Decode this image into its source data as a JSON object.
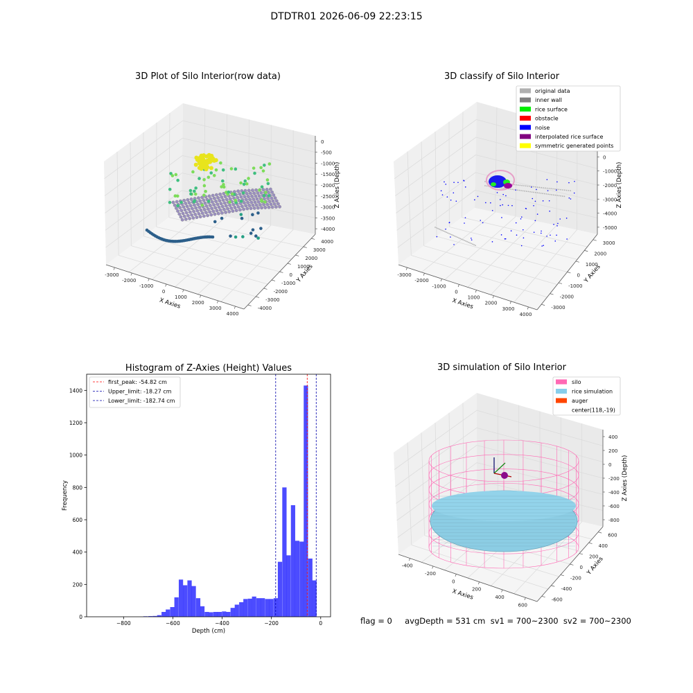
{
  "figure_title": "DTDTR01 2026-06-09 22:23:15",
  "panels": {
    "raw": {
      "title": "3D Plot of Silo Interior(row data)",
      "xlabel": "X Axies",
      "ylabel": "Y Axies",
      "zlabel": "Z Axies (Depth)",
      "xticks": [
        "-3000",
        "-2000",
        "-1000",
        "0",
        "1000",
        "2000",
        "3000",
        "4000"
      ],
      "yticks": [
        "4000",
        "3000",
        "2000",
        "1000",
        "0",
        "-1000",
        "-2000",
        "-3000",
        "-4000"
      ],
      "zticks": [
        "0",
        "-500",
        "-1000",
        "-1500",
        "-2000",
        "-2500",
        "-3000",
        "-3500",
        "-4000"
      ]
    },
    "classify": {
      "title": "3D classify of Silo Interior",
      "xlabel": "X Axies",
      "ylabel": "Y Axies",
      "zlabel": "Z Axies (Depth)",
      "xticks": [
        "-3000",
        "-2000",
        "-1000",
        "0",
        "1000",
        "2000",
        "3000",
        "4000"
      ],
      "yticks": [
        "3000",
        "2000",
        "1000",
        "0",
        "-1000",
        "-2000",
        "-3000"
      ],
      "zticks": [
        "1000",
        "0",
        "-1000",
        "-2000",
        "-3000",
        "-4000",
        "-5000"
      ],
      "legend": [
        {
          "label": "original data",
          "color": "#b0b0b0"
        },
        {
          "label": "inner wall",
          "color": "#808080"
        },
        {
          "label": "rice surface",
          "color": "#00ee00"
        },
        {
          "label": "obstacle",
          "color": "#ff0000"
        },
        {
          "label": "noise",
          "color": "#0000ff"
        },
        {
          "label": "interpolated rice surface",
          "color": "#800080"
        },
        {
          "label": "symmetric generated points",
          "color": "#ffff00"
        }
      ]
    },
    "simulation": {
      "title": "3D simulation of Silo Interior",
      "xlabel": "X Axies",
      "ylabel": "Y Axies",
      "zlabel": "Z Axies (Depth)",
      "xticks": [
        "-400",
        "-200",
        "0",
        "200",
        "400",
        "600"
      ],
      "yticks": [
        "600",
        "400",
        "200",
        "0",
        "-200",
        "-400",
        "-600"
      ],
      "zticks": [
        "400",
        "200",
        "0",
        "-200",
        "-400",
        "-600",
        "-800"
      ],
      "legend": [
        {
          "label": "silo",
          "color": "#ff69b4"
        },
        {
          "label": "rice simulation",
          "color": "#87ceeb"
        },
        {
          "label": "auger",
          "color": "#ff4500"
        },
        {
          "label": "center(118,-19)",
          "color": ""
        }
      ]
    }
  },
  "info_line": "flag = 0     avgDepth = 531 cm  sv1 = 700~2300  sv2 = 700~2300",
  "chart_data": [
    {
      "type": "bar",
      "title": "Histogram of Z-Axies (Height) Values",
      "xlabel": "Depth (cm)",
      "ylabel": "Frequency",
      "xlim": [
        -950,
        40
      ],
      "ylim": [
        0,
        1500
      ],
      "xticks": [
        -800,
        -600,
        -400,
        -200,
        0
      ],
      "yticks": [
        0,
        200,
        400,
        600,
        800,
        1000,
        1200,
        1400
      ],
      "bin_width": 17.5,
      "bar_color": "#0000ff",
      "bins": [
        {
          "x0": -720,
          "count": 3
        },
        {
          "x0": -700,
          "count": 4
        },
        {
          "x0": -682,
          "count": 5
        },
        {
          "x0": -664,
          "count": 10
        },
        {
          "x0": -646,
          "count": 30
        },
        {
          "x0": -629,
          "count": 45
        },
        {
          "x0": -611,
          "count": 60
        },
        {
          "x0": -594,
          "count": 120
        },
        {
          "x0": -576,
          "count": 230
        },
        {
          "x0": -559,
          "count": 195
        },
        {
          "x0": -541,
          "count": 225
        },
        {
          "x0": -524,
          "count": 190
        },
        {
          "x0": -506,
          "count": 115
        },
        {
          "x0": -489,
          "count": 65
        },
        {
          "x0": -471,
          "count": 30
        },
        {
          "x0": -454,
          "count": 28
        },
        {
          "x0": -436,
          "count": 30
        },
        {
          "x0": -419,
          "count": 30
        },
        {
          "x0": -401,
          "count": 33
        },
        {
          "x0": -384,
          "count": 30
        },
        {
          "x0": -366,
          "count": 55
        },
        {
          "x0": -349,
          "count": 75
        },
        {
          "x0": -331,
          "count": 90
        },
        {
          "x0": -314,
          "count": 110
        },
        {
          "x0": -296,
          "count": 112
        },
        {
          "x0": -279,
          "count": 125
        },
        {
          "x0": -261,
          "count": 115
        },
        {
          "x0": -244,
          "count": 115
        },
        {
          "x0": -226,
          "count": 110
        },
        {
          "x0": -209,
          "count": 110
        },
        {
          "x0": -191,
          "count": 115
        },
        {
          "x0": -174,
          "count": 340
        },
        {
          "x0": -156,
          "count": 800
        },
        {
          "x0": -139,
          "count": 380
        },
        {
          "x0": -121,
          "count": 690
        },
        {
          "x0": -104,
          "count": 470
        },
        {
          "x0": -86,
          "count": 465
        },
        {
          "x0": -69,
          "count": 1430
        },
        {
          "x0": -51,
          "count": 360
        },
        {
          "x0": -34,
          "count": 225
        }
      ],
      "lines": [
        {
          "label": "first_peak: -54.82 cm",
          "x": -54.82,
          "color": "#ff0000"
        },
        {
          "label": "Upper_limit: -18.27 cm",
          "x": -18.27,
          "color": "#0000aa"
        },
        {
          "label": "Lower_limit: -182.74 cm",
          "x": -182.74,
          "color": "#0000aa"
        }
      ],
      "legend_position": "upper left"
    }
  ]
}
